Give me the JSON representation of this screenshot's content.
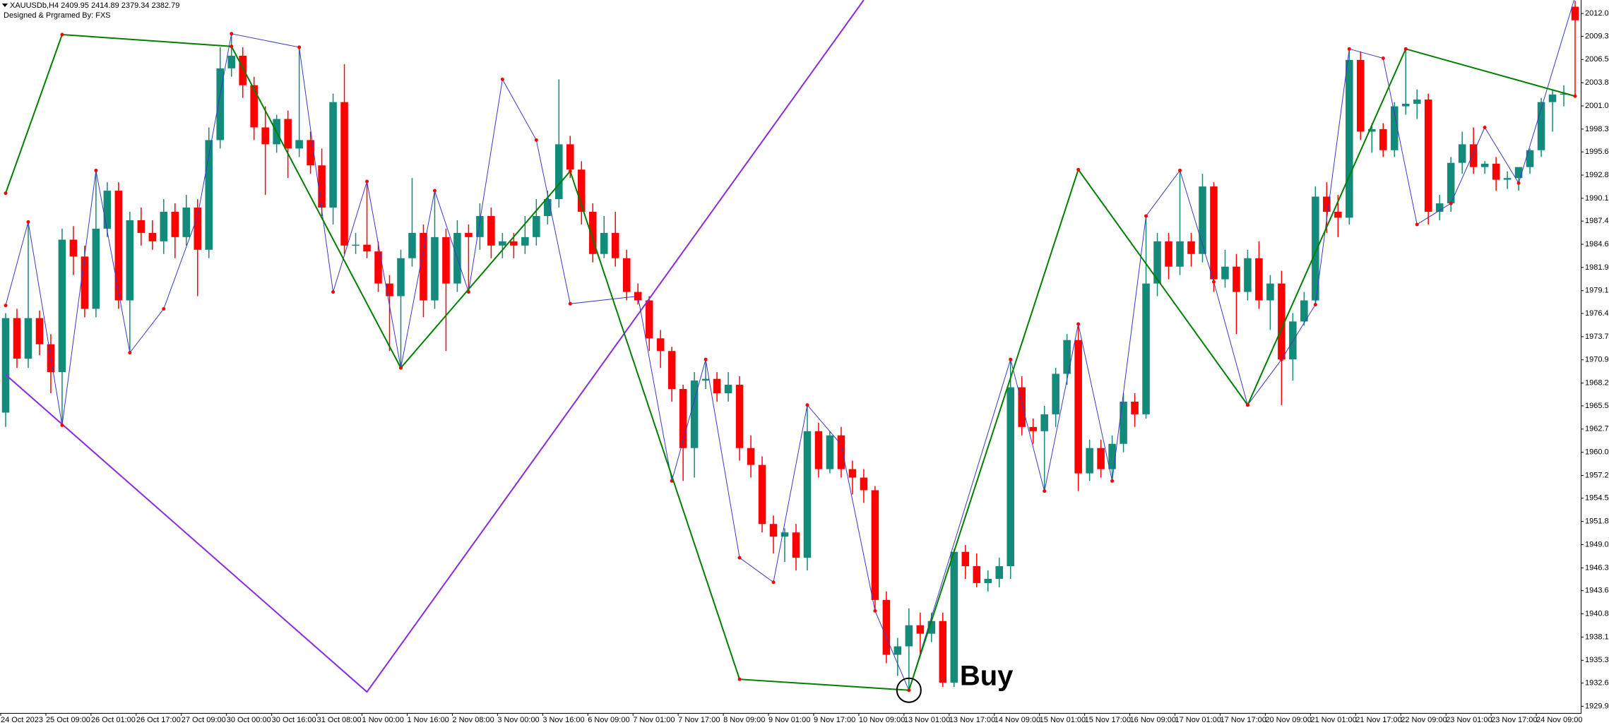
{
  "chart_data": {
    "type": "candlestick",
    "info": "XAUUSDb,H4  2409.95 2414.89 2379.34 2382.79",
    "subtitle": "Designed & Prgramed By: FXS",
    "annotation": "Buy",
    "up_color": "#138a7a",
    "down_color": "#ff0000",
    "grid": false,
    "ylim": [
      1929.1,
      2013.6
    ],
    "yticks": [
      {
        "value": 2012.0,
        "label": "2012.00"
      },
      {
        "value": 2009.3,
        "label": "2009.30"
      },
      {
        "value": 2006.55,
        "label": "2006.55"
      },
      {
        "value": 2003.8,
        "label": "2003.80"
      },
      {
        "value": 2001.05,
        "label": "2001.05"
      },
      {
        "value": 1998.3,
        "label": "1998.30"
      },
      {
        "value": 1995.6,
        "label": "1995.60"
      },
      {
        "value": 1992.85,
        "label": "1992.85"
      },
      {
        "value": 1990.1,
        "label": "1990.10"
      },
      {
        "value": 1987.4,
        "label": "1987.40"
      },
      {
        "value": 1984.65,
        "label": "1984.65"
      },
      {
        "value": 1981.9,
        "label": "1981.90"
      },
      {
        "value": 1979.15,
        "label": "1979.15"
      },
      {
        "value": 1976.45,
        "label": "1976.45"
      },
      {
        "value": 1973.7,
        "label": "1973.70"
      },
      {
        "value": 1970.95,
        "label": "1970.95"
      },
      {
        "value": 1968.2,
        "label": "1968.20"
      },
      {
        "value": 1965.5,
        "label": "1965.50"
      },
      {
        "value": 1962.75,
        "label": "1962.75"
      },
      {
        "value": 1960.0,
        "label": "1960.00"
      },
      {
        "value": 1957.25,
        "label": "1957.25"
      },
      {
        "value": 1954.55,
        "label": "1954.55"
      },
      {
        "value": 1951.8,
        "label": "1951.80"
      },
      {
        "value": 1949.05,
        "label": "1949.05"
      },
      {
        "value": 1946.3,
        "label": "1946.30"
      },
      {
        "value": 1943.6,
        "label": "1943.60"
      },
      {
        "value": 1940.85,
        "label": "1940.85"
      },
      {
        "value": 1938.1,
        "label": "1938.10"
      },
      {
        "value": 1935.35,
        "label": "1935.35"
      },
      {
        "value": 1932.65,
        "label": "1932.65"
      },
      {
        "value": 1929.9,
        "label": "1929.90"
      }
    ],
    "categories": [
      "24 Oct 2023",
      null,
      null,
      null,
      "25 Oct 09:00",
      null,
      null,
      null,
      "26 Oct 01:00",
      null,
      null,
      null,
      "26 Oct 17:00",
      null,
      null,
      null,
      "27 Oct 09:00",
      null,
      null,
      null,
      "30 Oct 00:00",
      null,
      null,
      null,
      "30 Oct 16:00",
      null,
      null,
      null,
      "31 Oct 08:00",
      null,
      null,
      null,
      "1 Nov 00:00",
      null,
      null,
      null,
      "1 Nov 16:00",
      null,
      null,
      null,
      "2 Nov 08:00",
      null,
      null,
      null,
      "3 Nov 00:00",
      null,
      null,
      null,
      "3 Nov 16:00",
      null,
      null,
      null,
      "6 Nov 09:00",
      null,
      null,
      null,
      "7 Nov 01:00",
      null,
      null,
      null,
      "7 Nov 17:00",
      null,
      null,
      null,
      "8 Nov 09:00",
      null,
      null,
      null,
      "9 Nov 01:00",
      null,
      null,
      null,
      "9 Nov 17:00",
      null,
      null,
      null,
      "10 Nov 09:00",
      null,
      null,
      null,
      "13 Nov 01:00",
      null,
      null,
      null,
      "13 Nov 17:00",
      null,
      null,
      null,
      "14 Nov 09:00",
      null,
      null,
      null,
      "15 Nov 01:00",
      null,
      null,
      null,
      "15 Nov 17:00",
      null,
      null,
      null,
      "16 Nov 09:00",
      null,
      null,
      null,
      "17 Nov 01:00",
      null,
      null,
      null,
      "17 Nov 17:00",
      null,
      null,
      null,
      "20 Nov 09:00",
      null,
      null,
      null,
      "21 Nov 01:00",
      null,
      null,
      null,
      "21 Nov 17:00",
      null,
      null,
      null,
      "22 Nov 09:00",
      null,
      null,
      null,
      "23 Nov 01:00",
      null,
      null,
      null,
      "23 Nov 17:00",
      null,
      null,
      null,
      "24 Nov 09:00",
      null,
      null,
      null
    ],
    "candles": [
      [
        1964.7,
        1976.5,
        1963.0,
        1975.9
      ],
      [
        1975.9,
        1977.0,
        1970.0,
        1971.1
      ],
      [
        1971.1,
        1987.3,
        1970.0,
        1975.9
      ],
      [
        1975.9,
        1976.8,
        1971.5,
        1972.8
      ],
      [
        1972.8,
        1974.0,
        1967.0,
        1969.5
      ],
      [
        1969.5,
        1986.5,
        1963.2,
        1985.2
      ],
      [
        1985.2,
        1986.8,
        1981.0,
        1983.2
      ],
      [
        1983.2,
        1984.5,
        1976.0,
        1977.0
      ],
      [
        1977.0,
        1993.4,
        1976.0,
        1986.5
      ],
      [
        1986.5,
        1992.0,
        1985.5,
        1991.0
      ],
      [
        1991.0,
        1992.0,
        1977.0,
        1978.0
      ],
      [
        1978.0,
        1988.5,
        1971.8,
        1987.5
      ],
      [
        1987.5,
        1989.0,
        1984.5,
        1986.0
      ],
      [
        1986.0,
        1987.5,
        1984.0,
        1985.0
      ],
      [
        1985.0,
        1990.0,
        1983.5,
        1988.5
      ],
      [
        1988.5,
        1989.5,
        1983.0,
        1985.5
      ],
      [
        1985.5,
        1990.5,
        1984.5,
        1989.0
      ],
      [
        1989.0,
        1990.0,
        1978.5,
        1984.0
      ],
      [
        1984.0,
        1998.5,
        1983.0,
        1997.0
      ],
      [
        1997.0,
        2008.0,
        1996.0,
        2005.5
      ],
      [
        2005.5,
        2009.6,
        2004.5,
        2007.0
      ],
      [
        2007.0,
        2008.0,
        2002.0,
        2003.5
      ],
      [
        2003.5,
        2004.5,
        1997.0,
        1998.5
      ],
      [
        1998.5,
        2001.0,
        1990.5,
        1996.5
      ],
      [
        1996.5,
        2000.0,
        1995.5,
        1999.5
      ],
      [
        1999.5,
        2000.5,
        1992.5,
        1996.0
      ],
      [
        1996.0,
        2008.0,
        1995.0,
        1997.0
      ],
      [
        1997.0,
        1998.0,
        1993.0,
        1994.0
      ],
      [
        1994.0,
        1996.0,
        1988.0,
        1989.0
      ],
      [
        1989.0,
        2002.5,
        1987.0,
        2001.5
      ],
      [
        2001.5,
        2006.0,
        1983.5,
        1984.5
      ],
      [
        1984.5,
        1986.0,
        1983.5,
        1984.6
      ],
      [
        1984.6,
        1992.1,
        1983.0,
        1983.8
      ],
      [
        1983.8,
        1985.0,
        1979.0,
        1980.0
      ],
      [
        1980.0,
        1981.0,
        1972.0,
        1978.5
      ],
      [
        1978.5,
        1984.0,
        1970.0,
        1983.0
      ],
      [
        1983.0,
        1992.5,
        1982.0,
        1986.0
      ],
      [
        1986.0,
        1987.0,
        1976.0,
        1978.0
      ],
      [
        1978.0,
        1991.0,
        1977.0,
        1985.5
      ],
      [
        1985.5,
        1986.5,
        1972.0,
        1980.0
      ],
      [
        1980.0,
        1987.5,
        1979.0,
        1986.0
      ],
      [
        1986.0,
        1987.0,
        1979.0,
        1985.5
      ],
      [
        1985.5,
        1989.5,
        1984.0,
        1988.0
      ],
      [
        1988.0,
        1989.0,
        1983.0,
        1984.5
      ],
      [
        1984.5,
        1986.0,
        1983.0,
        1985.0
      ],
      [
        1985.0,
        1986.0,
        1983.0,
        1984.5
      ],
      [
        1984.5,
        1988.0,
        1983.5,
        1985.5
      ],
      [
        1985.5,
        1990.0,
        1984.5,
        1988.0
      ],
      [
        1988.0,
        1991.0,
        1987.0,
        1990.0
      ],
      [
        1990.0,
        2004.2,
        1989.0,
        1996.5
      ],
      [
        1996.5,
        1997.5,
        1992.5,
        1993.5
      ],
      [
        1993.5,
        1994.5,
        1987.0,
        1988.5
      ],
      [
        1988.5,
        1989.5,
        1982.5,
        1983.5
      ],
      [
        1983.5,
        1988.0,
        1983.0,
        1986.0
      ],
      [
        1986.0,
        1988.5,
        1982.0,
        1983.0
      ],
      [
        1983.0,
        1984.0,
        1978.0,
        1979.0
      ],
      [
        1979.0,
        1980.0,
        1977.5,
        1978.0
      ],
      [
        1978.0,
        1978.5,
        1972.0,
        1973.5
      ],
      [
        1973.5,
        1974.5,
        1970.0,
        1972.0
      ],
      [
        1972.0,
        1972.5,
        1966.0,
        1967.5
      ],
      [
        1967.5,
        1968.0,
        1956.6,
        1960.5
      ],
      [
        1960.5,
        1969.5,
        1957.0,
        1968.5
      ],
      [
        1968.5,
        1971.0,
        1967.5,
        1968.7
      ],
      [
        1968.7,
        1969.5,
        1966.0,
        1967.0
      ],
      [
        1967.0,
        1969.5,
        1966.0,
        1968.0
      ],
      [
        1968.0,
        1969.0,
        1959.0,
        1960.5
      ],
      [
        1960.5,
        1962.0,
        1957.0,
        1958.5
      ],
      [
        1958.5,
        1959.5,
        1950.5,
        1951.5
      ],
      [
        1951.5,
        1952.5,
        1948.0,
        1950.0
      ],
      [
        1950.0,
        1951.0,
        1947.0,
        1950.5
      ],
      [
        1950.5,
        1951.5,
        1946.0,
        1947.5
      ],
      [
        1947.5,
        1965.6,
        1946.0,
        1962.5
      ],
      [
        1962.5,
        1963.5,
        1957.0,
        1958.0
      ],
      [
        1958.0,
        1962.5,
        1957.5,
        1962.0
      ],
      [
        1962.0,
        1963.0,
        1957.0,
        1958.0
      ],
      [
        1958.0,
        1959.0,
        1955.0,
        1957.0
      ],
      [
        1957.0,
        1958.0,
        1954.0,
        1955.5
      ],
      [
        1955.5,
        1956.0,
        1941.2,
        1942.5
      ],
      [
        1942.5,
        1943.5,
        1935.0,
        1936.0
      ],
      [
        1936.0,
        1938.0,
        1933.5,
        1937.0
      ],
      [
        1937.0,
        1941.5,
        1931.8,
        1939.5
      ],
      [
        1939.5,
        1941.0,
        1936.0,
        1938.5
      ],
      [
        1938.5,
        1941.0,
        1937.5,
        1940.0
      ],
      [
        1940.0,
        1941.0,
        1932.2,
        1932.7
      ],
      [
        1932.7,
        1948.5,
        1932.2,
        1948.2
      ],
      [
        1948.2,
        1949.0,
        1945.0,
        1946.5
      ],
      [
        1946.5,
        1948.0,
        1944.0,
        1944.5
      ],
      [
        1944.5,
        1946.0,
        1943.5,
        1945.0
      ],
      [
        1945.0,
        1947.5,
        1944.0,
        1946.5
      ],
      [
        1946.5,
        1971.0,
        1945.0,
        1967.7
      ],
      [
        1967.7,
        1969.0,
        1962.0,
        1963.0
      ],
      [
        1963.0,
        1964.0,
        1961.0,
        1962.5
      ],
      [
        1962.5,
        1965.5,
        1955.4,
        1964.5
      ],
      [
        1964.5,
        1970.0,
        1963.0,
        1969.3
      ],
      [
        1969.3,
        1974.0,
        1968.0,
        1973.3
      ],
      [
        1973.3,
        1975.2,
        1955.4,
        1957.5
      ],
      [
        1957.5,
        1961.5,
        1956.6,
        1960.5
      ],
      [
        1960.5,
        1961.5,
        1957.0,
        1958.0
      ],
      [
        1958.0,
        1962.0,
        1956.6,
        1961.0
      ],
      [
        1961.0,
        1967.0,
        1960.0,
        1966.0
      ],
      [
        1966.0,
        1967.0,
        1963.0,
        1964.5
      ],
      [
        1964.5,
        1988.0,
        1964.0,
        1980.0
      ],
      [
        1980.0,
        1986.0,
        1978.5,
        1985.0
      ],
      [
        1985.0,
        1986.0,
        1980.5,
        1982.0
      ],
      [
        1982.0,
        1993.4,
        1981.0,
        1985.0
      ],
      [
        1985.0,
        1986.0,
        1982.0,
        1983.5
      ],
      [
        1983.5,
        1993.0,
        1982.5,
        1991.5
      ],
      [
        1991.5,
        1992.0,
        1979.0,
        1980.5
      ],
      [
        1980.5,
        1984.0,
        1979.5,
        1982.0
      ],
      [
        1982.0,
        1983.5,
        1974.0,
        1979.0
      ],
      [
        1979.0,
        1984.0,
        1978.0,
        1983.0
      ],
      [
        1983.0,
        1985.0,
        1977.0,
        1978.0
      ],
      [
        1978.0,
        1981.0,
        1974.5,
        1980.0
      ],
      [
        1980.0,
        1981.5,
        1965.6,
        1971.0
      ],
      [
        1971.0,
        1976.5,
        1968.5,
        1975.5
      ],
      [
        1975.5,
        1979.0,
        1975.0,
        1978.0
      ],
      [
        1978.0,
        1991.5,
        1977.5,
        1990.3
      ],
      [
        1990.3,
        1992.0,
        1986.0,
        1988.5
      ],
      [
        1988.5,
        1990.5,
        1985.5,
        1987.8
      ],
      [
        1987.8,
        2007.8,
        1987.0,
        2006.5
      ],
      [
        2006.5,
        2007.5,
        1997.0,
        1998.0
      ],
      [
        1998.0,
        1999.0,
        1995.5,
        1998.3
      ],
      [
        1998.3,
        1999.0,
        1995.0,
        1995.8
      ],
      [
        1995.8,
        2001.5,
        1995.0,
        2001.0
      ],
      [
        2001.0,
        2007.8,
        2000.0,
        2001.3
      ],
      [
        2001.3,
        2003.0,
        1999.5,
        2001.8
      ],
      [
        2001.8,
        2002.5,
        1987.0,
        1988.5
      ],
      [
        1988.5,
        1990.5,
        1987.5,
        1989.5
      ],
      [
        1989.5,
        1995.0,
        1988.5,
        1994.3
      ],
      [
        1994.3,
        1998.0,
        1993.0,
        1996.5
      ],
      [
        1996.5,
        1998.5,
        1993.0,
        1993.8
      ],
      [
        1993.8,
        1994.5,
        1993.0,
        1994.2
      ],
      [
        1994.2,
        1995.0,
        1991.0,
        1992.3
      ],
      [
        1992.3,
        1993.3,
        1991.2,
        1992.5
      ],
      [
        1992.5,
        1993.5,
        1991.0,
        1993.8
      ],
      [
        1993.8,
        1996.0,
        1993.0,
        1995.8
      ],
      [
        1995.8,
        2002.0,
        1995.0,
        2001.5
      ],
      [
        2001.5,
        2003.0,
        1998.0,
        2002.4
      ],
      [
        2002.4,
        2003.5,
        2001.0,
        2002.5
      ],
      [
        2012.8,
        2013.5,
        2002.2,
        2011.2
      ]
    ],
    "zigzags": [
      {
        "color": "#8a2be2",
        "width": 2,
        "markers": false,
        "x": [
          0,
          32,
          76
        ],
        "values": [
          1969.2,
          1931.6,
          2013.6
        ]
      },
      {
        "color": "#3a3ac8",
        "width": 1,
        "markers": true,
        "x": [
          0,
          2,
          5,
          8,
          11,
          14,
          17,
          20,
          26,
          29,
          32,
          35,
          38,
          41,
          44,
          47,
          50,
          56,
          59,
          62,
          65,
          68,
          71,
          74,
          77,
          80,
          89,
          92,
          95,
          98,
          101,
          104,
          107,
          110,
          113,
          116,
          119,
          122,
          125,
          128,
          131,
          134,
          139
        ],
        "values": [
          1977.4,
          1987.3,
          1963.2,
          1993.4,
          1971.8,
          1977.0,
          1988.0,
          2009.6,
          2008.0,
          1979.0,
          1992.1,
          1970.0,
          1991.0,
          1979.0,
          2004.2,
          1997.0,
          1977.6,
          1978.5,
          1956.6,
          1971.0,
          1947.5,
          1944.6,
          1965.6,
          1960.9,
          1941.2,
          1931.8,
          1971.0,
          1955.4,
          1975.2,
          1956.6,
          1988.0,
          1993.4,
          1980.2,
          1965.6,
          1971.0,
          1977.5,
          2007.8,
          2006.7,
          1987.0,
          1989.5,
          1998.5,
          1991.9,
          2014.0
        ]
      },
      {
        "color": "#008000",
        "width": 2,
        "markers": true,
        "x": [
          0,
          5,
          20,
          35,
          50,
          65,
          80,
          95,
          110,
          124,
          139
        ],
        "values": [
          1990.7,
          2009.5,
          2008.1,
          1970.0,
          1993.3,
          1933.1,
          1931.8,
          1993.5,
          1965.6,
          2007.8,
          2002.2
        ]
      }
    ],
    "marker_color": "#ff0000"
  }
}
